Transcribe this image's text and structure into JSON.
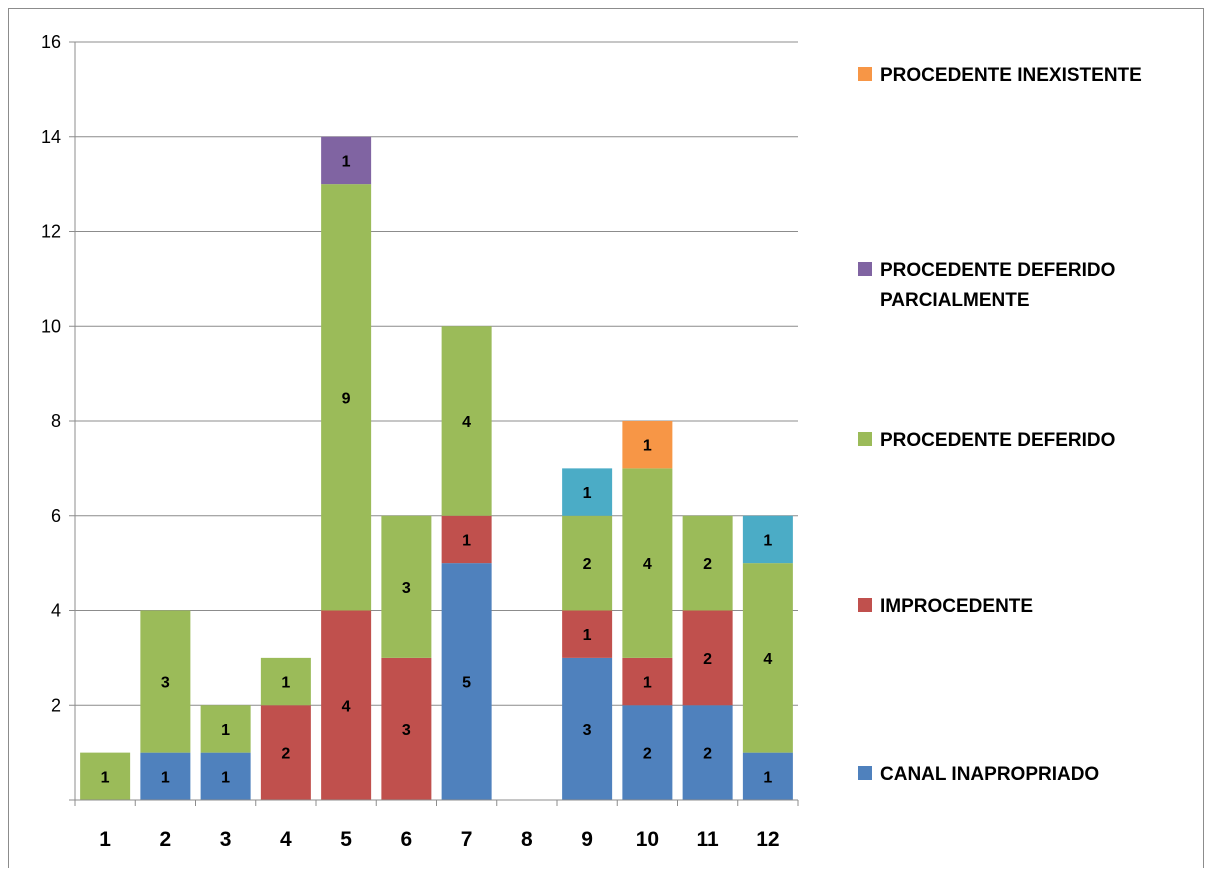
{
  "chart_data": {
    "type": "bar",
    "stacked": true,
    "categories": [
      "1",
      "2",
      "3",
      "4",
      "5",
      "6",
      "7",
      "8",
      "9",
      "10",
      "11",
      "12"
    ],
    "ylim": [
      0,
      16
    ],
    "yticks": [
      "2",
      "4",
      "6",
      "8",
      "10",
      "12",
      "14",
      "16"
    ],
    "grid": true,
    "legend_position": "right",
    "series": [
      {
        "name": "CANAL INAPROPRIADO",
        "color": "#4f81bd",
        "values": [
          0,
          1,
          1,
          0,
          0,
          0,
          5,
          0,
          3,
          2,
          2,
          1
        ]
      },
      {
        "name": "IMPROCEDENTE",
        "color": "#c0504d",
        "values": [
          0,
          0,
          0,
          2,
          4,
          3,
          1,
          0,
          1,
          1,
          2,
          0
        ]
      },
      {
        "name": "PROCEDENTE DEFERIDO",
        "color": "#9bbb59",
        "values": [
          1,
          3,
          1,
          1,
          9,
          3,
          4,
          0,
          2,
          4,
          2,
          4
        ]
      },
      {
        "name": "PROCEDENTE DEFERIDO PARCIALMENTE",
        "color": "#8064a2",
        "values": [
          0,
          0,
          0,
          0,
          1,
          0,
          0,
          0,
          0,
          0,
          0,
          0
        ]
      },
      {
        "name": "PROCEDENTE INEXISTENTE",
        "color": "#f79646",
        "values": [
          0,
          0,
          0,
          0,
          0,
          0,
          0,
          0,
          0,
          1,
          0,
          0
        ]
      },
      {
        "name": "",
        "color": "#4bacc6",
        "values": [
          0,
          0,
          0,
          0,
          0,
          0,
          0,
          0,
          1,
          0,
          0,
          1
        ]
      }
    ]
  }
}
